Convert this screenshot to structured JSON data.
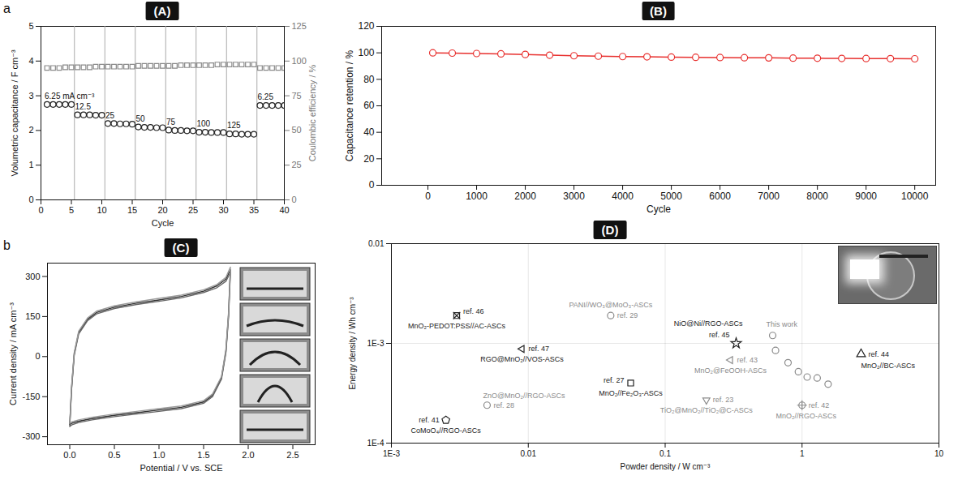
{
  "chart_data": [
    {
      "badge": "(A)",
      "panel_letter": "a",
      "type": "scatter",
      "x_label": "Cycle",
      "y_label": "Volumetric capacitance / F cm⁻³",
      "y2_label": "Coulombic efficiency / %",
      "xlim": [
        0,
        40
      ],
      "xticks": [
        0,
        5,
        10,
        15,
        20,
        25,
        30,
        35,
        40
      ],
      "ylim": [
        0,
        5
      ],
      "yticks": [
        0,
        1,
        2,
        3,
        4,
        5
      ],
      "y2lim": [
        0,
        125
      ],
      "y2ticks": [
        0,
        25,
        50,
        75,
        100,
        125
      ],
      "x": [
        1,
        2,
        3,
        4,
        5,
        6,
        7,
        8,
        9,
        10,
        11,
        12,
        13,
        14,
        15,
        16,
        17,
        18,
        19,
        20,
        21,
        22,
        23,
        24,
        25,
        26,
        27,
        28,
        29,
        30,
        31,
        32,
        33,
        34,
        35,
        36,
        37,
        38,
        39,
        40
      ],
      "series": [
        {
          "color": "#222222",
          "marker": "circle",
          "values": [
            2.75,
            2.75,
            2.75,
            2.75,
            2.75,
            2.45,
            2.45,
            2.45,
            2.44,
            2.44,
            2.2,
            2.2,
            2.19,
            2.19,
            2.18,
            2.1,
            2.09,
            2.09,
            2.08,
            2.08,
            2.01,
            2.0,
            2.0,
            1.99,
            1.99,
            1.95,
            1.95,
            1.94,
            1.94,
            1.94,
            1.9,
            1.9,
            1.89,
            1.89,
            1.89,
            2.72,
            2.72,
            2.72,
            2.72,
            2.72
          ]
        },
        {
          "color": "#8a8a8a",
          "marker": "square",
          "axis": "y2",
          "values": [
            95,
            95,
            95,
            95.5,
            95.5,
            95.5,
            95.5,
            95.5,
            96,
            96,
            96,
            96,
            96,
            96,
            96,
            96.5,
            96.5,
            96.5,
            96.5,
            96.5,
            96.5,
            96.5,
            97,
            97,
            97,
            97,
            97,
            97,
            97.5,
            97.5,
            97.5,
            97.5,
            97.5,
            97.5,
            97.5,
            95,
            95,
            95,
            95,
            95
          ]
        }
      ],
      "dividers": [
        5.5,
        10.5,
        15.5,
        20.5,
        25.5,
        30.5,
        35.5
      ],
      "segment_labels": [
        "6.25 mA cm⁻³",
        "12.5",
        "25",
        "50",
        "75",
        "100",
        "125",
        "6.25"
      ]
    },
    {
      "badge": "(B)",
      "type": "line",
      "marker": "circle",
      "x_label": "Cycle",
      "y_label": "Capacitance retention / %",
      "xlim": [
        -950,
        10430
      ],
      "xticks": [
        0,
        1000,
        2000,
        3000,
        4000,
        5000,
        6000,
        7000,
        8000,
        9000,
        10000
      ],
      "ylim": [
        0,
        120
      ],
      "yticks": [
        0,
        20,
        40,
        60,
        80,
        100,
        120
      ],
      "x": [
        100,
        500,
        1000,
        1500,
        2000,
        2500,
        3000,
        3500,
        4000,
        4500,
        5000,
        5500,
        6000,
        6500,
        7000,
        7500,
        8000,
        8500,
        9000,
        9500,
        10000
      ],
      "series": [
        {
          "color": "#e8312f",
          "values": [
            100,
            99.8,
            99.5,
            99.2,
            98.8,
            98.2,
            97.8,
            97.5,
            97.2,
            97,
            96.8,
            96.6,
            96.5,
            96.3,
            96.2,
            96,
            95.9,
            95.8,
            95.7,
            95.6,
            95.5
          ]
        }
      ]
    },
    {
      "badge": "(C)",
      "panel_letter": "b",
      "type": "line",
      "x_label": "Potential / V vs. SCE",
      "y_label": "Current density / mA cm⁻³",
      "xlim": [
        -0.25,
        2.75
      ],
      "xticks": [
        {
          "value": 0,
          "label": "0.0"
        },
        {
          "value": 0.5,
          "label": "0.5"
        },
        {
          "value": 1,
          "label": "1.0"
        },
        {
          "value": 1.5,
          "label": "1.5"
        },
        {
          "value": 2,
          "label": "2.0"
        },
        {
          "value": 2.5,
          "label": "2.5"
        }
      ],
      "ylim": [
        -330,
        350
      ],
      "yticks": [
        -300,
        -150,
        0,
        150,
        300
      ],
      "x": [
        0,
        0.02,
        0.05,
        0.1,
        0.2,
        0.3,
        0.5,
        0.75,
        1.0,
        1.25,
        1.5,
        1.65,
        1.75,
        1.8,
        1.78,
        1.75,
        1.7,
        1.6,
        1.5,
        1.25,
        1.0,
        0.75,
        0.5,
        0.25,
        0.1,
        0.02,
        0
      ],
      "series": [
        {
          "color": "#333333",
          "values": [
            -255,
            -120,
            10,
            90,
            140,
            165,
            185,
            200,
            212,
            225,
            245,
            265,
            290,
            325,
            160,
            20,
            -80,
            -145,
            -170,
            -190,
            -200,
            -210,
            -220,
            -232,
            -242,
            -250,
            -255
          ]
        },
        {
          "color": "#666666",
          "values": [
            -262,
            -125,
            5,
            85,
            135,
            160,
            180,
            195,
            207,
            220,
            240,
            258,
            282,
            315,
            150,
            15,
            -85,
            -150,
            -175,
            -195,
            -205,
            -215,
            -225,
            -237,
            -247,
            -256,
            -262
          ]
        },
        {
          "color": "#999999",
          "values": [
            -250,
            -112,
            15,
            95,
            145,
            170,
            190,
            205,
            218,
            230,
            250,
            270,
            297,
            335,
            168,
            28,
            -75,
            -140,
            -165,
            -185,
            -195,
            -205,
            -215,
            -227,
            -237,
            -245,
            -250
          ]
        }
      ]
    },
    {
      "badge": "(D)",
      "type": "scatter",
      "log": true,
      "grid": true,
      "x_label": "Powder density / W cm⁻³",
      "y_label": "Energy density / Wh cm⁻³",
      "xlim": [
        0.001,
        10
      ],
      "xticks": [
        {
          "value": 0.001,
          "label": "1E-3"
        },
        0.01,
        0.1,
        1,
        10
      ],
      "ylim": [
        0.0001,
        0.01
      ],
      "yticks": [
        {
          "value": 0.0001,
          "label": "1E-4"
        },
        {
          "value": 0.001,
          "label": "1E-3"
        },
        0.01
      ],
      "series": [
        {
          "name": "MnO₂-PEDOT:PSS//AC-ASCs",
          "ref": "ref. 46",
          "color": "#222222",
          "marker": "square_x",
          "x": [
            0.003
          ],
          "values": [
            0.0019
          ]
        },
        {
          "name": "RGO@MnO₂//VOS-ASCs",
          "ref": "ref. 47",
          "color": "#222222",
          "marker": "triangle_left",
          "x": [
            0.009
          ],
          "values": [
            0.00088
          ]
        },
        {
          "name": "PANI//WO₃@MoO₃-ASCs",
          "ref": "ref. 29",
          "color": "#8a8a8a",
          "marker": "circle",
          "x": [
            0.04
          ],
          "values": [
            0.0019
          ]
        },
        {
          "name": "MnO₂//Fe₂O₃-ASCs",
          "ref": "ref. 27",
          "color": "#222222",
          "marker": "square",
          "x": [
            0.056
          ],
          "values": [
            0.0004
          ]
        },
        {
          "name": "ZnO@MnO₂//RGO-ASCs",
          "ref": "ref. 28",
          "color": "#8a8a8a",
          "marker": "circle",
          "x": [
            0.005
          ],
          "values": [
            0.00024
          ]
        },
        {
          "name": "CoMoO₄//RGO-ASCs",
          "ref": "ref. 41",
          "color": "#222222",
          "marker": "pentagon",
          "x": [
            0.0025
          ],
          "values": [
            0.00017
          ]
        },
        {
          "name": "NiO@Ni//RGO-ASCs",
          "ref": "ref. 45",
          "color": "#222222",
          "marker": "star",
          "x": [
            0.33
          ],
          "values": [
            0.001
          ]
        },
        {
          "name": "MnO₂@FeOOH-ASCs",
          "ref": "ref. 43",
          "color": "#8a8a8a",
          "marker": "triangle_left",
          "x": [
            0.3
          ],
          "values": [
            0.00068
          ]
        },
        {
          "name": "TiO₂@MnO₂//TiO₂@C-ASCs",
          "ref": "ref. 23",
          "color": "#8a8a8a",
          "marker": "triangle_down",
          "x": [
            0.2
          ],
          "values": [
            0.00027
          ]
        },
        {
          "name": "MnO₂//RGO-ASCs",
          "ref": "ref. 42",
          "color": "#8a8a8a",
          "marker": "circle_plus",
          "x": [
            1.0
          ],
          "values": [
            0.00024
          ]
        },
        {
          "name": "MnO₂//BC-ASCs",
          "ref": "ref. 44",
          "color": "#222222",
          "marker": "triangle_up",
          "x": [
            2.7
          ],
          "values": [
            0.00078
          ]
        },
        {
          "name": "This work",
          "color": "#8a8a8a",
          "marker": "circle",
          "x": [
            0.61,
            0.64,
            0.79,
            0.94,
            1.09,
            1.29,
            1.55
          ],
          "values": [
            0.0012,
            0.00085,
            0.00064,
            0.00052,
            0.00046,
            0.00045,
            0.00039
          ]
        }
      ]
    }
  ]
}
